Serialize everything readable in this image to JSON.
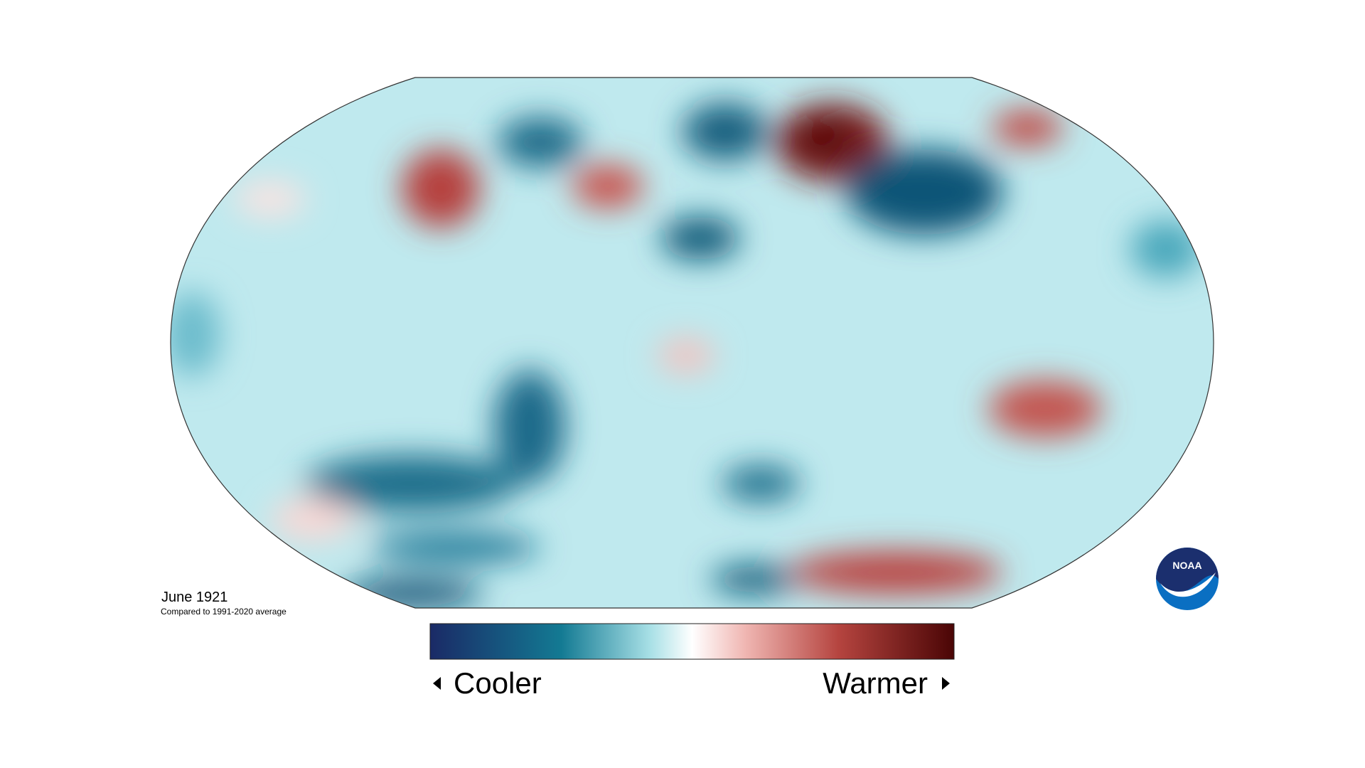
{
  "map": {
    "title": "June 1921",
    "subtitle": "Compared to 1991-2020 average"
  },
  "legend": {
    "low_label": "Cooler",
    "high_label": "Warmer"
  },
  "logo": {
    "text": "NOAA"
  }
}
